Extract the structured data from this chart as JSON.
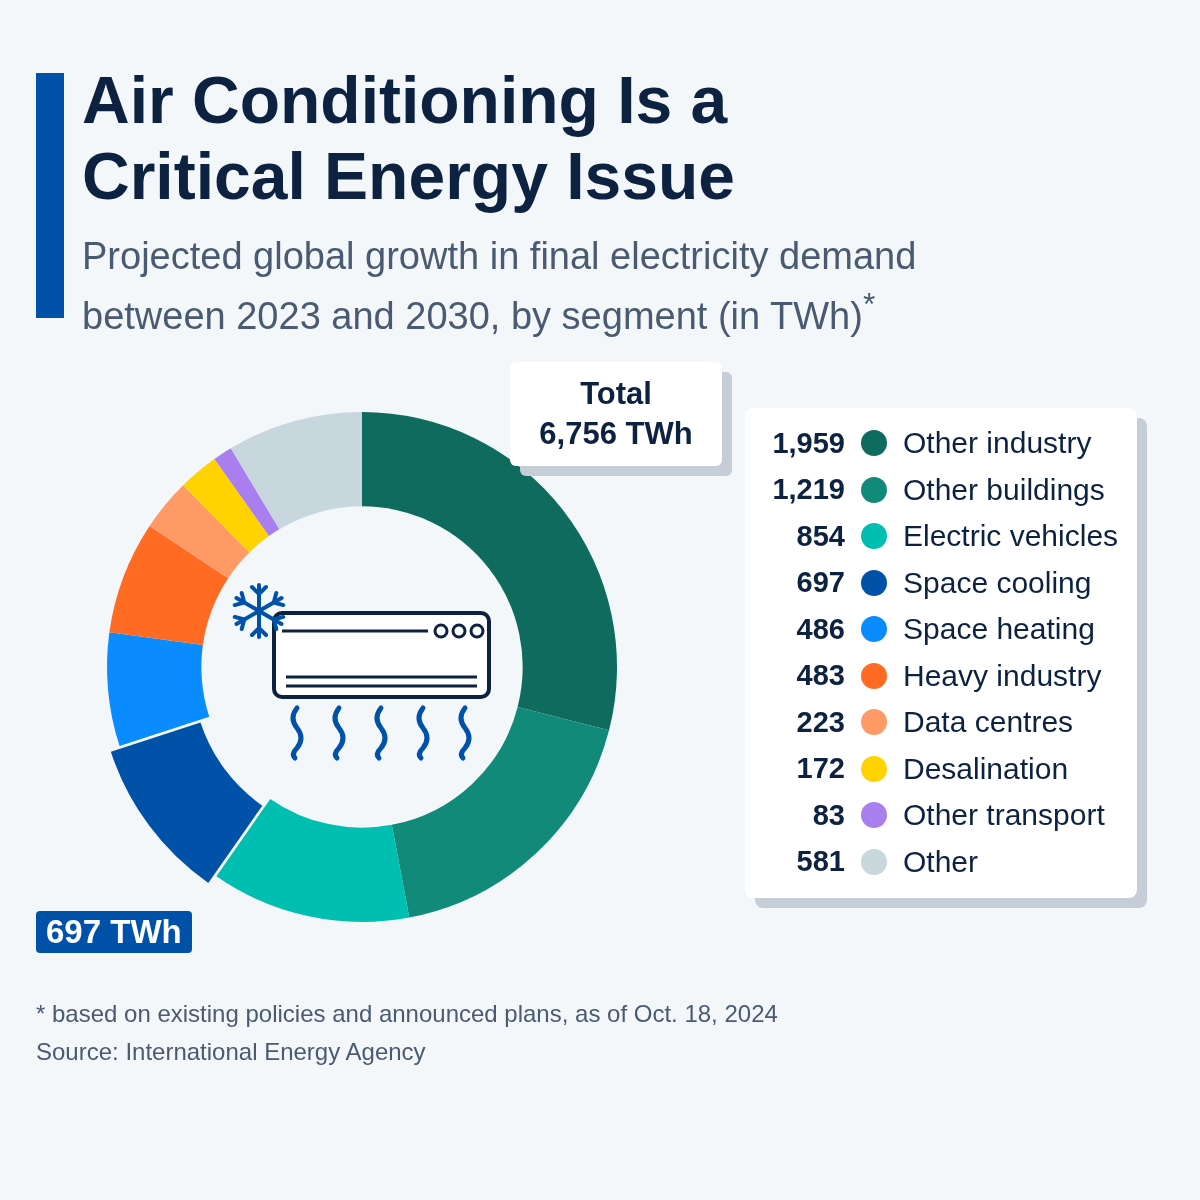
{
  "chart_data": {
    "type": "donut",
    "title": "Air Conditioning Is a Critical Energy Issue",
    "subtitle": "Projected global growth in final electricity demand between 2023 and 2030, by segment (in TWh)$^{*}$",
    "categories": [
      "Other industry",
      "Other buildings",
      "Electric vehicles",
      "Space cooling",
      "Space heating",
      "Heavy industry",
      "Data centres",
      "Desalination",
      "Other transport",
      "Other"
    ],
    "values": [
      1959,
      1219,
      854,
      697,
      486,
      483,
      223,
      172,
      83,
      581
    ],
    "colors": [
      "#0e6b5e",
      "#128a7a",
      "#00bfb0",
      "#0052a8",
      "#0a8cff",
      "#ff6b23",
      "#ff9966",
      "#ffd200",
      "#a97ff0",
      "#c8d6de"
    ],
    "value_labels": [
      "1,959",
      "1,219",
      "854",
      "697",
      "486",
      "483",
      "223",
      "172",
      "83",
      "581"
    ],
    "legend": "right",
    "annotations": [
      "Total\n6,756 TWh",
      "697 TWh",
      "* based on existing policies and announced plans, as of Oct. 18, 2024",
      "Source: International Energy Agency"
    ]
  }
}
